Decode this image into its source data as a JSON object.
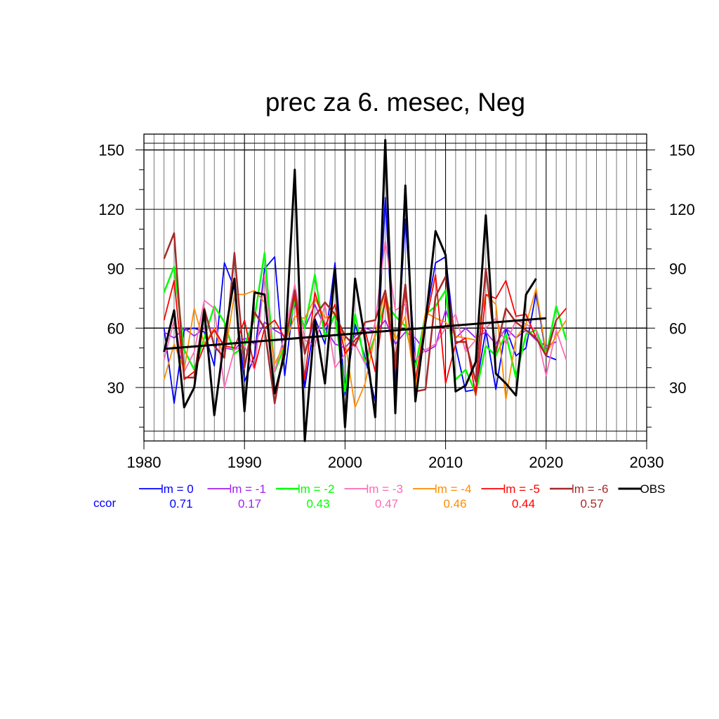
{
  "chart_data": {
    "type": "line",
    "title": "prec za 6. mesec, Neg",
    "xlabel": "",
    "ylabel": "",
    "xlim": [
      1980,
      2030
    ],
    "ylim": [
      3,
      158
    ],
    "xticks": [
      "1980",
      "1990",
      "2000",
      "2010",
      "2020",
      "2030"
    ],
    "yticks": [
      "30",
      "60",
      "90",
      "120",
      "150"
    ],
    "ytick_values": [
      30,
      60,
      90,
      120,
      150
    ],
    "xtick_values": [
      1980,
      1990,
      2000,
      2010,
      2020,
      2030
    ],
    "reference_lines": [
      60,
      150
    ],
    "grid": true,
    "legend_position": "bottom",
    "x": [
      1982,
      1983,
      1984,
      1985,
      1986,
      1987,
      1988,
      1989,
      1990,
      1991,
      1992,
      1993,
      1994,
      1995,
      1996,
      1997,
      1998,
      1999,
      2000,
      2001,
      2002,
      2003,
      2004,
      2005,
      2006,
      2007,
      2008,
      2009,
      2010,
      2011,
      2012,
      2013,
      2014,
      2015,
      2016,
      2017,
      2018,
      2019,
      2020,
      2021,
      2022
    ],
    "series": [
      {
        "name": "lm = 0",
        "color": "#0000ff",
        "width": 1.8,
        "values": [
          60,
          22,
          59,
          60,
          58,
          41,
          93,
          80,
          33,
          46,
          90,
          96,
          36,
          78,
          30,
          65,
          52,
          93,
          26,
          62,
          45,
          23,
          126,
          31,
          115,
          41,
          65,
          93,
          96,
          51,
          28,
          29,
          59,
          29,
          60,
          46,
          50,
          78,
          46,
          44,
          null
        ]
      },
      {
        "name": "lm = -1",
        "color": "#a020f0",
        "width": 1.8,
        "values": [
          58,
          55,
          60,
          56,
          60,
          60,
          50,
          49,
          55,
          52,
          63,
          59,
          56,
          72,
          60,
          72,
          60,
          52,
          50,
          56,
          60,
          58,
          64,
          52,
          58,
          55,
          48,
          51,
          69,
          55,
          60,
          55,
          58,
          52,
          60,
          55,
          59,
          54,
          51,
          53,
          null
        ]
      },
      {
        "name": "lm = -2",
        "color": "#00ff00",
        "width": 2.5,
        "values": [
          78,
          91,
          49,
          39,
          55,
          71,
          63,
          47,
          51,
          65,
          98,
          38,
          51,
          74,
          60,
          87,
          55,
          67,
          28,
          67,
          42,
          56,
          73,
          66,
          61,
          40,
          67,
          71,
          79,
          34,
          39,
          27,
          51,
          46,
          57,
          35,
          57,
          59,
          46,
          71,
          54
        ]
      },
      {
        "name": "lm = -3",
        "color": "#ff69b4",
        "width": 1.8,
        "values": [
          44,
          64,
          38,
          48,
          74,
          70,
          30,
          49,
          51,
          39,
          87,
          38,
          57,
          82,
          54,
          51,
          72,
          40,
          47,
          52,
          42,
          63,
          104,
          69,
          72,
          44,
          49,
          52,
          60,
          67,
          48,
          54,
          60,
          65,
          52,
          64,
          62,
          59,
          36,
          59,
          44
        ]
      },
      {
        "name": "lm = -4",
        "color": "#ff8c00",
        "width": 1.8,
        "values": [
          34,
          52,
          39,
          70,
          52,
          60,
          45,
          77,
          77,
          79,
          73,
          42,
          52,
          66,
          65,
          75,
          65,
          68,
          53,
          20,
          32,
          57,
          79,
          54,
          66,
          30,
          68,
          65,
          63,
          56,
          55,
          54,
          77,
          72,
          24,
          55,
          62,
          80,
          47,
          56,
          64
        ]
      },
      {
        "name": "lm = -5",
        "color": "#ff0000",
        "width": 1.8,
        "values": [
          64,
          84,
          34,
          38,
          51,
          59,
          51,
          50,
          64,
          40,
          60,
          64,
          55,
          76,
          34,
          78,
          61,
          72,
          47,
          54,
          59,
          38,
          76,
          39,
          79,
          34,
          62,
          87,
          32,
          52,
          55,
          26,
          77,
          75,
          84,
          66,
          67,
          55,
          46,
          64,
          70
        ]
      },
      {
        "name": "lm = -6",
        "color": "#a52a2a",
        "width": 2.5,
        "values": [
          95,
          108,
          35,
          35,
          70,
          51,
          45,
          98,
          40,
          68,
          60,
          22,
          51,
          79,
          47,
          66,
          73,
          67,
          56,
          51,
          63,
          64,
          79,
          43,
          82,
          28,
          29,
          76,
          86,
          53,
          53,
          33,
          90,
          48,
          70,
          63,
          59,
          55,
          46,
          64,
          null
        ]
      },
      {
        "name": "OBS",
        "color": "#000000",
        "width": 3,
        "values": [
          48,
          69,
          20,
          30,
          69,
          16,
          55,
          85,
          18,
          78,
          77,
          27,
          47,
          140,
          3,
          64,
          32,
          90,
          10,
          85,
          54,
          15,
          155,
          17,
          132,
          23,
          63,
          109,
          97,
          28,
          31,
          43,
          117,
          37,
          32,
          26,
          77,
          85,
          null,
          null,
          null
        ]
      }
    ],
    "obs_trend": {
      "x": [
        1982,
        2020
      ],
      "y": [
        49.5,
        65
      ]
    },
    "ccor": {
      "label": "ccor",
      "values": [
        "0.71",
        "0.17",
        "0.43",
        "0.47",
        "0.46",
        "0.44",
        "0.57"
      ]
    }
  }
}
